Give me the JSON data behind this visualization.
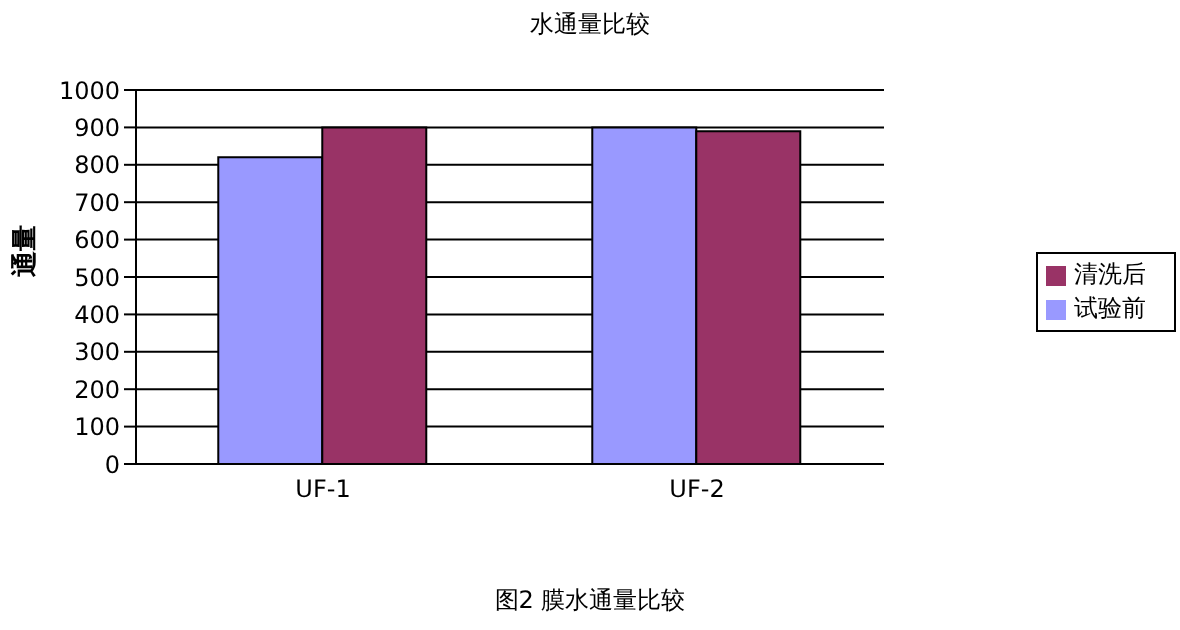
{
  "chart_data": {
    "type": "bar",
    "title": "水通量比较",
    "ylabel": "通量",
    "categories": [
      "UF-1",
      "UF-2"
    ],
    "series": [
      {
        "name": "试验前",
        "color": "#9999ff",
        "values": [
          820,
          900
        ]
      },
      {
        "name": "清洗后",
        "color": "#993366",
        "values": [
          900,
          890
        ]
      }
    ],
    "ylim": [
      0,
      1000
    ],
    "yticks": [
      0,
      100,
      200,
      300,
      400,
      500,
      600,
      700,
      800,
      900,
      1000
    ],
    "grid": "y",
    "legend": "right",
    "annotations": [
      "图2  膜水通量比较"
    ]
  }
}
